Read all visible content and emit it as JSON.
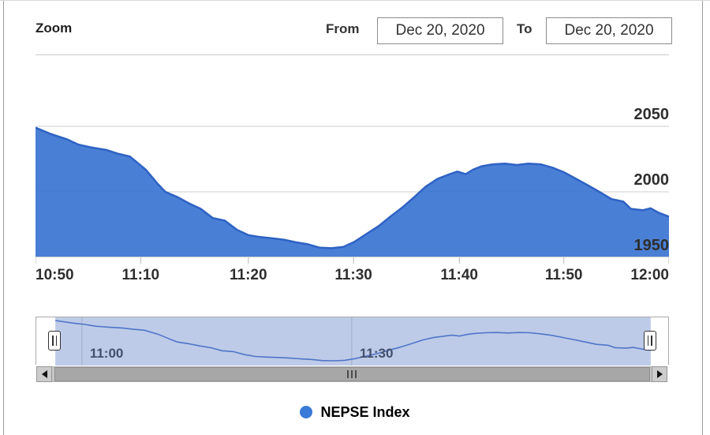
{
  "header": {
    "zoom_label": "Zoom",
    "from_label": "From",
    "from_value": "Dec 20, 2020",
    "to_label": "To",
    "to_value": "Dec 20, 2020"
  },
  "legend": {
    "series_label": "NEPSE Index",
    "marker_color": "#3a7ad9"
  },
  "chart_data": {
    "type": "area",
    "title": "",
    "xlabel": "",
    "ylabel": "",
    "series": [
      {
        "name": "NEPSE Index",
        "points": [
          [
            0.0,
            2049
          ],
          [
            0.025,
            2044
          ],
          [
            0.05,
            2040
          ],
          [
            0.068,
            2036
          ],
          [
            0.087,
            2034
          ],
          [
            0.112,
            2032
          ],
          [
            0.131,
            2029
          ],
          [
            0.149,
            2027
          ],
          [
            0.174,
            2017
          ],
          [
            0.193,
            2006
          ],
          [
            0.205,
            2000
          ],
          [
            0.224,
            1996
          ],
          [
            0.243,
            1991
          ],
          [
            0.261,
            1987
          ],
          [
            0.28,
            1980
          ],
          [
            0.299,
            1978
          ],
          [
            0.318,
            1971
          ],
          [
            0.336,
            1967
          ],
          [
            0.355,
            1965.5
          ],
          [
            0.374,
            1964.5
          ],
          [
            0.392,
            1963.5
          ],
          [
            0.411,
            1961.5
          ],
          [
            0.43,
            1960
          ],
          [
            0.448,
            1957.5
          ],
          [
            0.467,
            1957
          ],
          [
            0.486,
            1958
          ],
          [
            0.504,
            1962
          ],
          [
            0.523,
            1968
          ],
          [
            0.542,
            1974
          ],
          [
            0.56,
            1981
          ],
          [
            0.579,
            1988
          ],
          [
            0.598,
            1996
          ],
          [
            0.616,
            2004
          ],
          [
            0.635,
            2010
          ],
          [
            0.654,
            2013.5
          ],
          [
            0.666,
            2015.5
          ],
          [
            0.679,
            2013.5
          ],
          [
            0.691,
            2017
          ],
          [
            0.704,
            2019.5
          ],
          [
            0.722,
            2021
          ],
          [
            0.741,
            2021.5
          ],
          [
            0.76,
            2020.5
          ],
          [
            0.778,
            2021.5
          ],
          [
            0.797,
            2021
          ],
          [
            0.816,
            2018.5
          ],
          [
            0.834,
            2015
          ],
          [
            0.853,
            2010
          ],
          [
            0.872,
            2005
          ],
          [
            0.89,
            2000
          ],
          [
            0.909,
            1994.5
          ],
          [
            0.928,
            1992.5
          ],
          [
            0.94,
            1987
          ],
          [
            0.959,
            1986
          ],
          [
            0.971,
            1987.5
          ],
          [
            0.984,
            1984
          ],
          [
            1.0,
            1981
          ]
        ]
      }
    ],
    "x_ticks": [
      {
        "pos": 0.0,
        "label": "10:50"
      },
      {
        "pos": 0.166,
        "label": "11:10"
      },
      {
        "pos": 0.336,
        "label": "11:20"
      },
      {
        "pos": 0.502,
        "label": "11:30"
      },
      {
        "pos": 0.669,
        "label": "11:40"
      },
      {
        "pos": 0.834,
        "label": "11:50"
      },
      {
        "pos": 1.0,
        "label": "12:00"
      }
    ],
    "y_ticks": [
      {
        "value": 2050,
        "label": "2050"
      },
      {
        "value": 2000,
        "label": "2000"
      },
      {
        "value": 1950,
        "label": "1950"
      }
    ],
    "ylim": [
      1950,
      2050
    ],
    "grid": true,
    "legend_position": "bottom",
    "navigator": {
      "x_ticks": [
        {
          "pos": 0.072,
          "label": "11:00"
        },
        {
          "pos": 0.498,
          "label": "11:30"
        }
      ],
      "selected_range": [
        0.03,
        0.97
      ]
    },
    "style": {
      "area_fill": "#3b74d2",
      "area_fill_opacity": 0.92,
      "line_color": "#2e62c4",
      "grid_color": "#cccccc",
      "axis_line_color": "#c9c9c9",
      "tick_color": "#b5b5b5",
      "nav_line_color": "#4f74c8",
      "nav_mask_color": "rgba(125,152,210,0.50)",
      "nav_grid_color": "#9aa5b8"
    }
  }
}
